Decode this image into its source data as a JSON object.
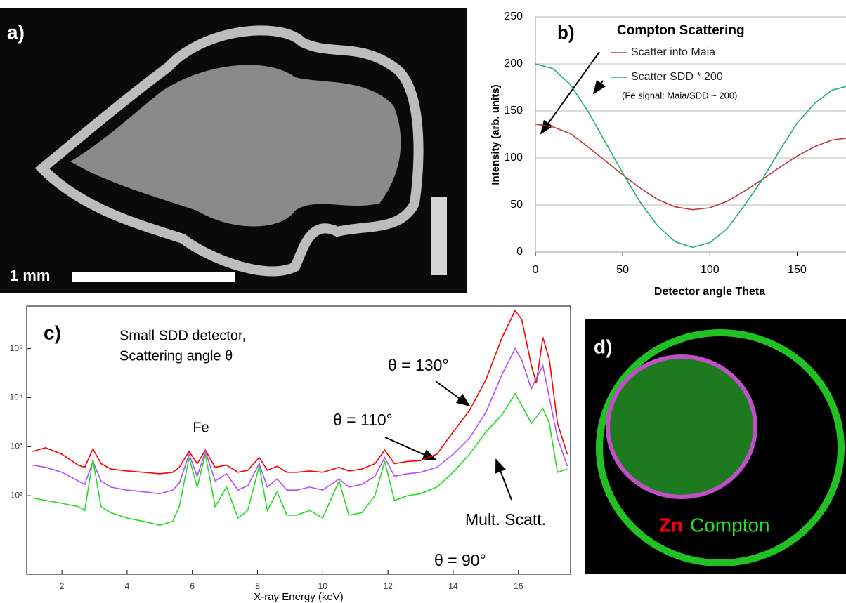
{
  "panels": {
    "a": {
      "label": "a)",
      "scale_bar": "1 mm"
    },
    "d": {
      "label": "d)",
      "element": "Zn",
      "signal": "Compton"
    }
  },
  "chart_data": [
    {
      "type": "line",
      "label": "b)",
      "title": "Compton Scattering",
      "note": "(Fe signal: Maia/SDD ~ 200)",
      "x_label": "Detector angle Theta",
      "y_label": "Intensity (arb. units)",
      "x": [
        0,
        10,
        20,
        30,
        40,
        50,
        60,
        70,
        80,
        90,
        100,
        110,
        120,
        130,
        140,
        150,
        160,
        170,
        178
      ],
      "series": [
        {
          "name": "Scatter into Maia",
          "color": "#c0393b",
          "values": [
            136,
            133,
            126,
            112,
            97,
            82,
            68,
            56,
            48,
            45,
            47,
            54,
            65,
            77,
            90,
            102,
            112,
            119,
            121
          ]
        },
        {
          "name": "Scatter SDD * 200",
          "color": "#1fb36b",
          "values": [
            200,
            195,
            178,
            150,
            117,
            84,
            53,
            28,
            11,
            5,
            10,
            25,
            50,
            77,
            108,
            137,
            158,
            172,
            176
          ]
        }
      ],
      "xlim": [
        0,
        178
      ],
      "ylim": [
        0,
        250
      ],
      "xticks": [
        0,
        50,
        100,
        150
      ],
      "yticks": [
        0,
        50,
        100,
        150,
        200,
        250
      ],
      "grid": true,
      "log_y": false
    },
    {
      "type": "line",
      "label": "c)",
      "title": "Small SDD detector,",
      "subtitle": "Scattering angle θ",
      "annotations": [
        "Fe",
        "Mult. Scatt."
      ],
      "x_label": "X-ray Energy (keV)",
      "x": [
        1.1,
        1.5,
        2.0,
        2.5,
        2.7,
        2.95,
        3.2,
        3.5,
        4.0,
        4.5,
        5.0,
        5.4,
        5.6,
        5.9,
        6.15,
        6.4,
        6.7,
        7.05,
        7.4,
        7.7,
        8.05,
        8.3,
        8.6,
        8.9,
        9.2,
        9.6,
        10.0,
        10.5,
        10.8,
        11.2,
        11.6,
        11.9,
        12.2,
        12.6,
        13.0,
        13.5,
        14.0,
        14.5,
        15.0,
        15.5,
        15.9,
        16.1,
        16.4,
        16.55,
        16.75,
        16.95,
        17.2,
        17.5
      ],
      "series": [
        {
          "name": "θ = 130°",
          "color": "#ff0000",
          "values": [
            800,
            950,
            700,
            420,
            380,
            900,
            450,
            350,
            320,
            300,
            280,
            300,
            380,
            800,
            450,
            850,
            380,
            420,
            300,
            330,
            600,
            330,
            400,
            300,
            300,
            320,
            300,
            380,
            320,
            350,
            450,
            850,
            450,
            500,
            520,
            700,
            2000,
            5500,
            23000,
            170000,
            600000,
            400000,
            45000,
            20000,
            170000,
            60000,
            3000,
            700
          ]
        },
        {
          "name": "θ = 110°",
          "color": "#b44cff",
          "values": [
            420,
            380,
            300,
            200,
            170,
            500,
            200,
            150,
            130,
            120,
            110,
            130,
            180,
            700,
            250,
            800,
            200,
            280,
            130,
            160,
            450,
            150,
            220,
            130,
            130,
            150,
            130,
            220,
            150,
            170,
            250,
            600,
            250,
            280,
            300,
            380,
            700,
            1500,
            5000,
            30000,
            100000,
            60000,
            15000,
            25000,
            45000,
            10000,
            1500,
            400
          ]
        },
        {
          "name": "θ = 90°",
          "color": "#22dd22",
          "values": [
            90,
            80,
            70,
            60,
            50,
            550,
            60,
            45,
            35,
            30,
            25,
            30,
            60,
            600,
            150,
            700,
            60,
            150,
            35,
            50,
            400,
            50,
            120,
            40,
            40,
            50,
            35,
            200,
            40,
            45,
            100,
            500,
            80,
            100,
            110,
            150,
            300,
            700,
            2000,
            4500,
            12000,
            7000,
            3000,
            4000,
            6000,
            3000,
            300,
            350
          ]
        }
      ],
      "xlim": [
        0.92,
        17.6
      ],
      "ylim": [
        2.5,
        740000
      ],
      "xticks": [
        2,
        4,
        6,
        8,
        10,
        12,
        14,
        16
      ],
      "yticks": [
        {
          "value": 100,
          "label": "10²"
        },
        {
          "value": 1000,
          "label": "10³"
        },
        {
          "value": 10000,
          "label": "10⁴"
        },
        {
          "value": 100000,
          "label": "10⁵"
        }
      ],
      "grid": false,
      "log_y": true
    }
  ]
}
